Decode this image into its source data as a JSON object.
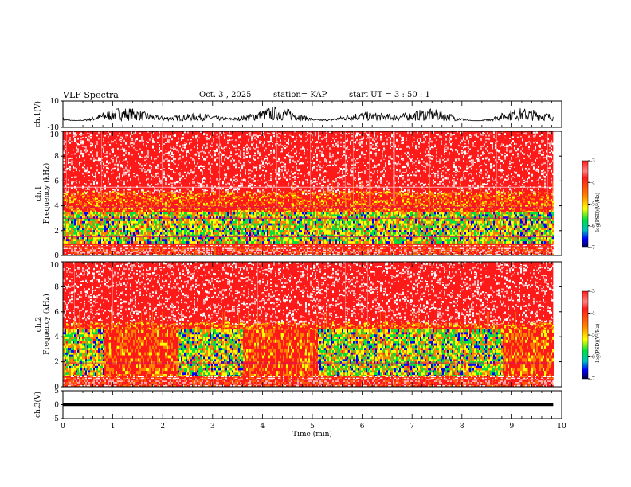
{
  "chart_data": {
    "type": "heatmap",
    "header": {
      "title": "VLF Spectra",
      "date": "Oct. 3 , 2025",
      "station_label": "station= KAP",
      "start_label": "start UT = 3 : 50 : 1"
    },
    "x_axis": {
      "label": "Time (min)",
      "range": [
        0,
        10
      ],
      "ticks": [
        "0",
        "1",
        "2",
        "3",
        "4",
        "5",
        "6",
        "7",
        "8",
        "9",
        "10"
      ],
      "data_end": 9.83
    },
    "panels": [
      {
        "name": "ch1-waveform",
        "type": "line",
        "ylabel": "ch.1(V)",
        "ylim": [
          -10,
          10
        ],
        "ticks": [
          "10",
          "-10"
        ],
        "amplitude_range": [
          -7,
          4
        ]
      },
      {
        "name": "ch1-spectrogram",
        "type": "heatmap",
        "ylabel": "ch.1\nFrequency (kHz)",
        "ylim": [
          0,
          10
        ],
        "ticks": [
          "0",
          "2",
          "4",
          "6",
          "8",
          "10"
        ],
        "colorbar": {
          "label": "log(PSD)(V²/Hz)",
          "range": [
            -7,
            -3
          ],
          "ticks": [
            "-3",
            "-4",
            "-5",
            "-6",
            "-7"
          ]
        },
        "green_band_khz": [
          1.0,
          3.5
        ],
        "green_intervals_min": [
          [
            0,
            9.83
          ]
        ],
        "hum_lines_khz": [
          1.5,
          2.2,
          3.0,
          3.9,
          5.5
        ]
      },
      {
        "name": "ch2-spectrogram",
        "type": "heatmap",
        "ylabel": "ch.2\nFrequency (kHz)",
        "ylim": [
          0,
          10
        ],
        "ticks": [
          "0",
          "2",
          "4",
          "6",
          "8",
          "10"
        ],
        "colorbar": {
          "label": "log(PSD)(V²/Hz)",
          "range": [
            -7,
            -3
          ],
          "ticks": [
            "-3",
            "-4",
            "-5",
            "-6",
            "-7"
          ]
        },
        "green_band_khz": [
          0.8,
          4.5
        ],
        "green_intervals_min": [
          [
            0,
            0.82
          ],
          [
            2.3,
            3.6
          ],
          [
            5.1,
            8.8
          ]
        ],
        "hum_lines_khz": [
          1.9
        ]
      },
      {
        "name": "ch3-waveform",
        "type": "line",
        "ylabel": "ch.3(V)",
        "ylim": [
          -5,
          5
        ],
        "ticks": [
          "5",
          "0",
          "-5"
        ],
        "amplitude_range": [
          -0.5,
          0.5
        ]
      }
    ]
  },
  "colors": {
    "red": "#ff1a1a",
    "orange": "#ff8000",
    "yellow": "#ffff00",
    "green": "#00e040",
    "blue": "#0000ff",
    "line": "#000000"
  }
}
